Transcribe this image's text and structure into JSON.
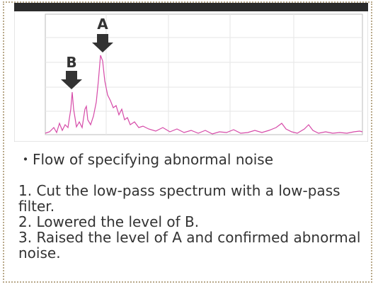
{
  "figure": {
    "label_a": "A",
    "label_b": "B"
  },
  "text": {
    "heading": "・Flow of specifying abnormal noise",
    "steps": [
      "1. Cut the low-pass spectrum with a low-pass filter.",
      "2. Lowered the level of B.",
      "3. Raised the level of A and confirmed abnormal noise."
    ]
  }
}
